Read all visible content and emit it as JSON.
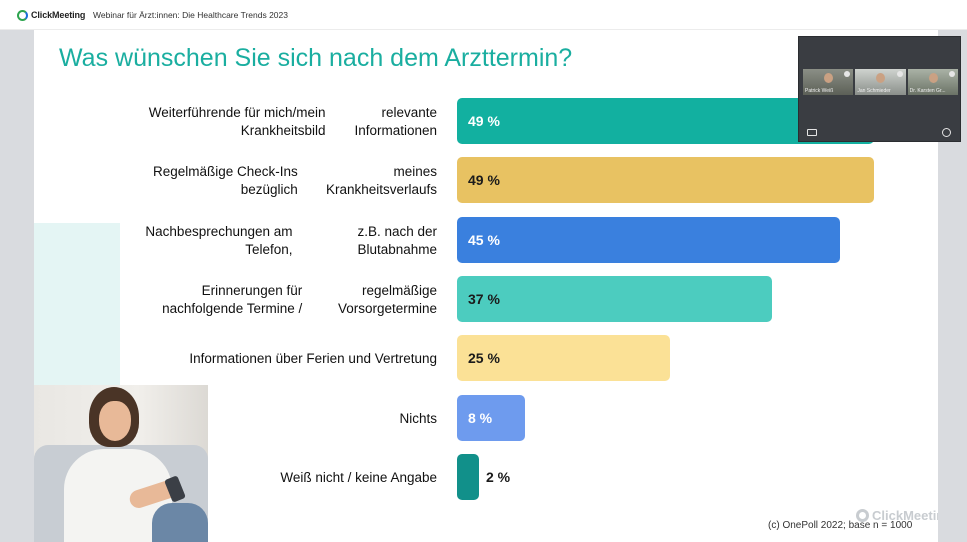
{
  "app": {
    "logo_text": "ClickMeeting",
    "webinar_title": "Webinar für Ärzt:innen: Die Healthcare Trends 2023"
  },
  "slide": {
    "title": "Was wünschen Sie sich nach dem Arzttermin?",
    "footnote": "(c) OnePoll 2022; base n = 1000",
    "watermark": "ClickMeeting"
  },
  "chart_data": {
    "type": "bar",
    "orientation": "horizontal",
    "title": "Was wünschen Sie sich nach dem Arzttermin?",
    "unit": "%",
    "xlim": [
      0,
      100
    ],
    "grid": false,
    "categories": [
      [
        "Weiterführende für mich/mein Krankheitsbild",
        "relevante Informationen"
      ],
      [
        "Regelmäßige Check-Ins bezüglich",
        "meines Krankheitsverlaufs"
      ],
      [
        "Nachbesprechungen am Telefon,",
        "z.B. nach der Blutabnahme"
      ],
      [
        "Erinnerungen für nachfolgende Termine /",
        "regelmäßige Vorsorgetermine"
      ],
      [
        "Informationen über Ferien und Vertretung"
      ],
      [
        "Nichts"
      ],
      [
        "Weiß nicht / keine Angabe"
      ]
    ],
    "values": [
      49,
      49,
      45,
      37,
      25,
      8,
      2
    ],
    "value_labels": [
      "49 %",
      "49 %",
      "45 %",
      "37 %",
      "25 %",
      "8 %",
      "2 %"
    ],
    "colors": [
      "#12b0a0",
      "#e8c262",
      "#3a80de",
      "#4cccbf",
      "#fbe196",
      "#6e9bee",
      "#11908a"
    ]
  },
  "video": {
    "participants": [
      "Patrick Weiß",
      "Jan Schmieder",
      "Dr. Karsten Gr..."
    ]
  },
  "colors": {
    "title": "#1aaea0"
  }
}
